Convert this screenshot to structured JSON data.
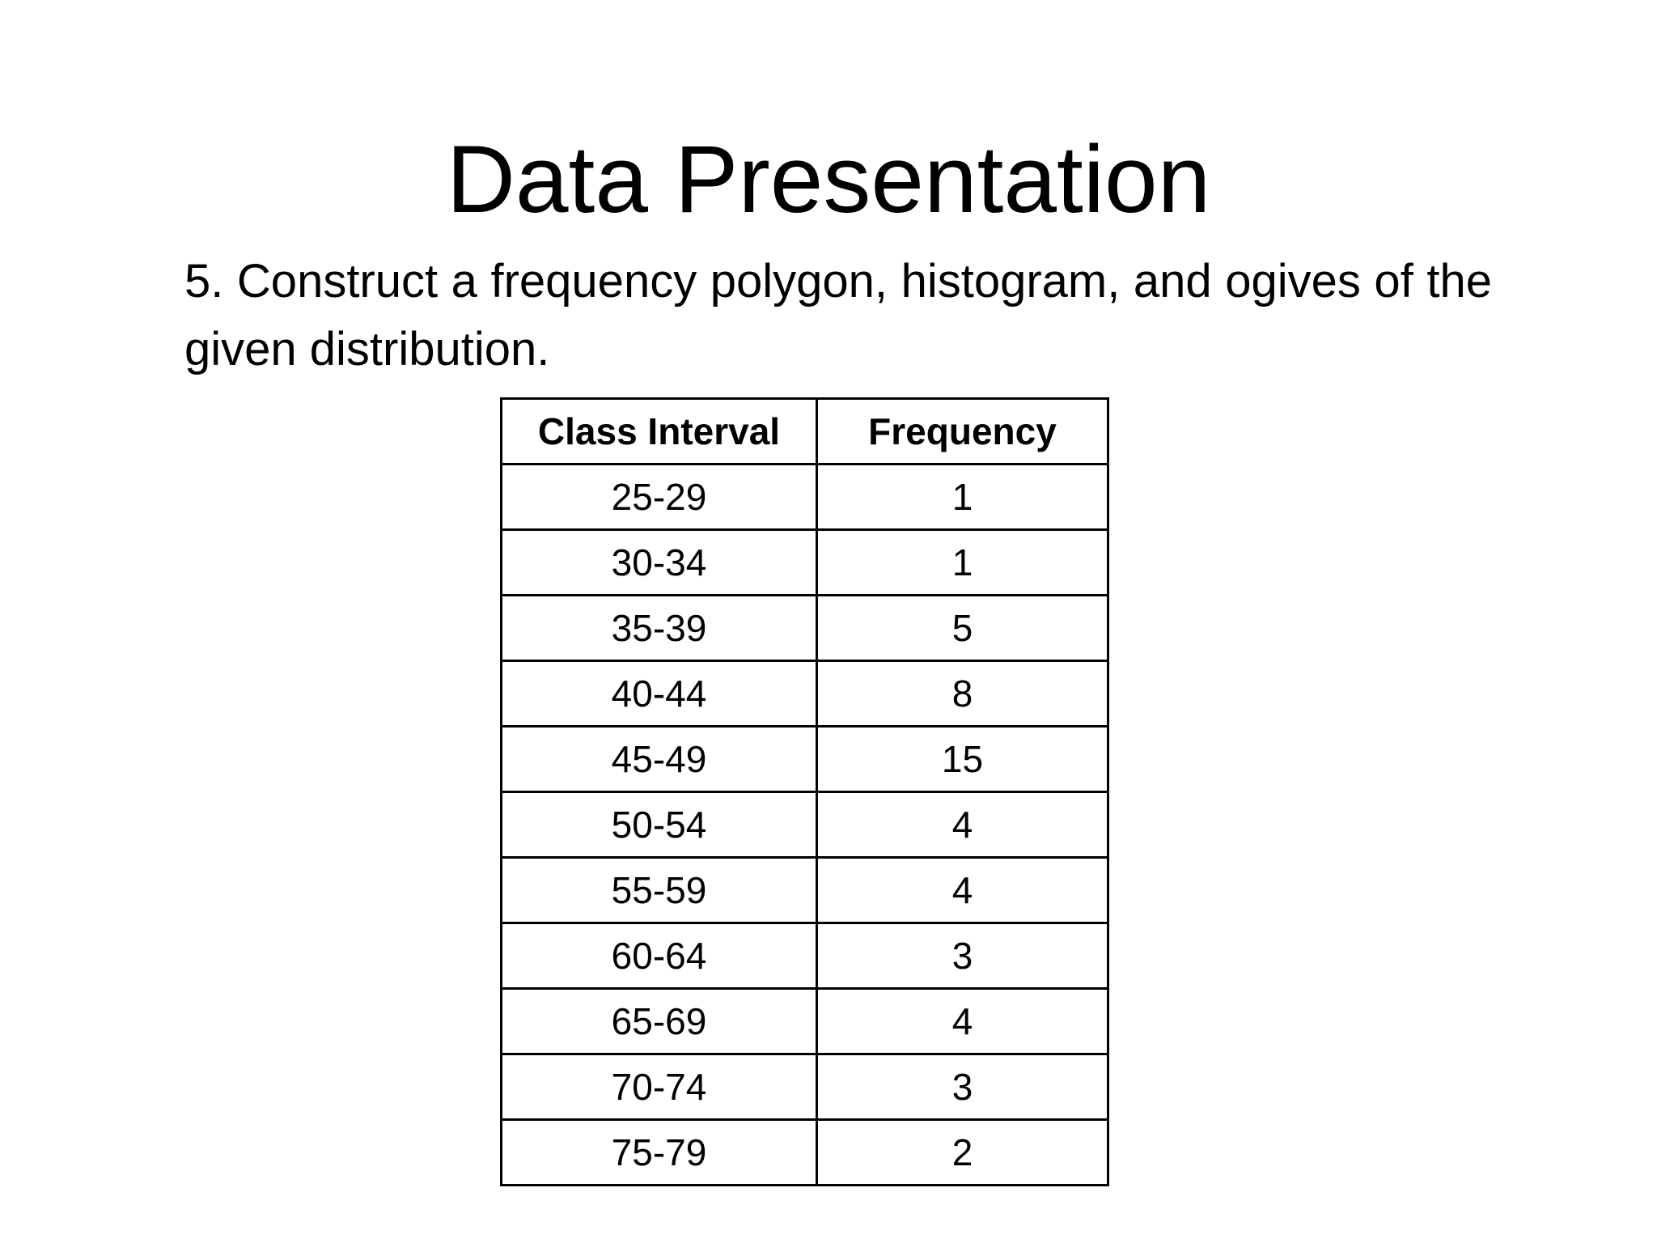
{
  "slide": {
    "title": "Data Presentation",
    "prompt": "5. Construct a frequency polygon, histogram, and ogives of the given distribution."
  },
  "table": {
    "headers": [
      "Class Interval",
      "Frequency"
    ],
    "rows": [
      [
        "25-29",
        "1"
      ],
      [
        "30-34",
        "1"
      ],
      [
        "35-39",
        "5"
      ],
      [
        "40-44",
        "8"
      ],
      [
        "45-49",
        "15"
      ],
      [
        "50-54",
        "4"
      ],
      [
        "55-59",
        "4"
      ],
      [
        "60-64",
        "3"
      ],
      [
        "65-69",
        "4"
      ],
      [
        "70-74",
        "3"
      ],
      [
        "75-79",
        "2"
      ]
    ]
  }
}
